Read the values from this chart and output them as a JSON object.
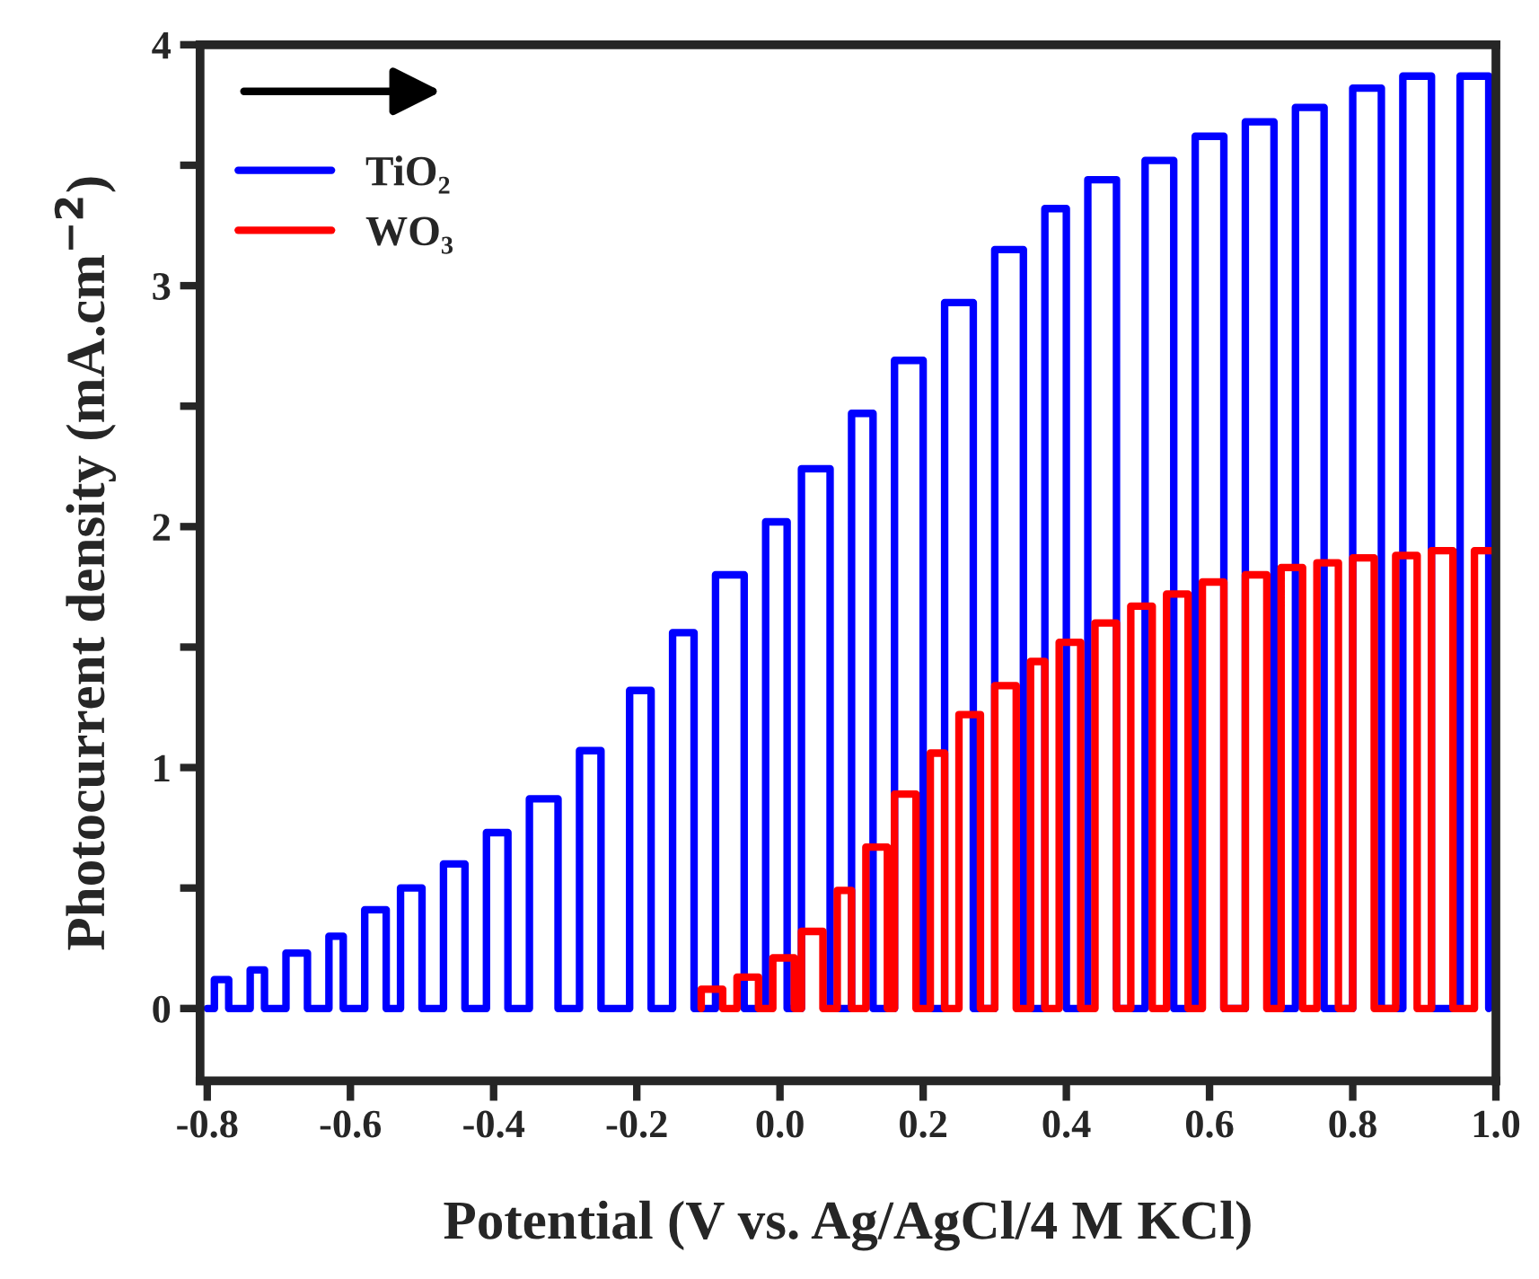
{
  "chart_data": {
    "type": "line",
    "xlabel": "Potential (V vs. Ag/AgCl/4 M KCl)",
    "ylabel": "Photocurrent density (mA.cm$^{−2}$)",
    "xlim": [
      -0.81,
      1.0
    ],
    "ylim": [
      -0.3,
      4.0
    ],
    "xticks": [
      {
        "value": -0.8,
        "label": "-0.8"
      },
      {
        "value": -0.6,
        "label": "-0.6"
      },
      {
        "value": -0.4,
        "label": "-0.4"
      },
      {
        "value": -0.2,
        "label": "-0.2"
      },
      {
        "value": 0.0,
        "label": "0.0"
      },
      {
        "value": 0.2,
        "label": "0.2"
      },
      {
        "value": 0.4,
        "label": "0.4"
      },
      {
        "value": 0.6,
        "label": "0.6"
      },
      {
        "value": 0.8,
        "label": "0.8"
      },
      {
        "value": 1.0,
        "label": "1.0"
      }
    ],
    "yticks": [
      0,
      {
        "value": 0.5,
        "label": null
      },
      1,
      {
        "value": 1.5,
        "label": null
      },
      2,
      {
        "value": 2.5,
        "label": null
      },
      3,
      {
        "value": 3.5,
        "label": null
      },
      4
    ],
    "grid": false,
    "legend": "top left",
    "marker": "none",
    "line_style": "solid",
    "series": [
      {
        "name": "TiO₂",
        "color": "#0000ff",
        "x": [
          -0.8,
          -0.79,
          -0.79,
          -0.77,
          -0.77,
          -0.74,
          -0.74,
          -0.72,
          -0.72,
          -0.69,
          -0.69,
          -0.66,
          -0.66,
          -0.63,
          -0.63,
          -0.61,
          -0.61,
          -0.58,
          -0.58,
          -0.55,
          -0.55,
          -0.53,
          -0.53,
          -0.5,
          -0.5,
          -0.47,
          -0.47,
          -0.44,
          -0.44,
          -0.41,
          -0.41,
          -0.38,
          -0.38,
          -0.35,
          -0.35,
          -0.31,
          -0.31,
          -0.28,
          -0.28,
          -0.25,
          -0.25,
          -0.21,
          -0.21,
          -0.18,
          -0.18,
          -0.15,
          -0.15,
          -0.12,
          -0.12,
          -0.09,
          -0.09,
          -0.05,
          -0.05,
          -0.02,
          -0.02,
          0.01,
          0.01,
          0.03,
          0.03,
          0.07,
          0.07,
          0.1,
          0.1,
          0.13,
          0.13,
          0.16,
          0.16,
          0.2,
          0.2,
          0.23,
          0.23,
          0.27,
          0.27,
          0.3,
          0.3,
          0.34,
          0.34,
          0.37,
          0.37,
          0.4,
          0.4,
          0.43,
          0.43,
          0.47,
          0.47,
          0.51,
          0.51,
          0.55,
          0.55,
          0.58,
          0.58,
          0.62,
          0.62,
          0.65,
          0.65,
          0.69,
          0.69,
          0.72,
          0.72,
          0.76,
          0.76,
          0.8,
          0.8,
          0.84,
          0.84,
          0.87,
          0.87,
          0.91,
          0.91,
          0.95,
          0.95,
          0.99,
          0.99
        ],
        "values": [
          0,
          0,
          0.12,
          0.12,
          0,
          0,
          0.16,
          0.16,
          0,
          0,
          0.23,
          0.23,
          0,
          0,
          0.3,
          0.3,
          0,
          0,
          0.41,
          0.41,
          0,
          0,
          0.5,
          0.5,
          0,
          0,
          0.6,
          0.6,
          0,
          0,
          0.73,
          0.73,
          0,
          0,
          0.87,
          0.87,
          0,
          0,
          1.07,
          1.07,
          0,
          0,
          1.32,
          1.32,
          0,
          0,
          1.56,
          1.56,
          0,
          0,
          1.8,
          1.8,
          0,
          0,
          2.02,
          2.02,
          0,
          0,
          2.24,
          2.24,
          0,
          0,
          2.47,
          2.47,
          0,
          0,
          2.69,
          2.69,
          0,
          0,
          2.93,
          2.93,
          0,
          0,
          3.15,
          3.15,
          0,
          0,
          3.32,
          3.32,
          0,
          0,
          3.44,
          3.44,
          0,
          0,
          3.52,
          3.52,
          0,
          0,
          3.62,
          3.62,
          0,
          0,
          3.68,
          3.68,
          0,
          0,
          3.74,
          3.74,
          0,
          0,
          3.82,
          3.82,
          0,
          0,
          3.87,
          3.87,
          0,
          0,
          3.87,
          3.87,
          0
        ]
      },
      {
        "name": "WO₃",
        "color": "#ff0000",
        "x": [
          -0.11,
          -0.11,
          -0.08,
          -0.08,
          -0.06,
          -0.06,
          -0.03,
          -0.03,
          -0.01,
          -0.01,
          0.02,
          0.02,
          0.03,
          0.03,
          0.06,
          0.06,
          0.08,
          0.08,
          0.1,
          0.1,
          0.12,
          0.12,
          0.15,
          0.15,
          0.16,
          0.16,
          0.19,
          0.19,
          0.21,
          0.21,
          0.23,
          0.23,
          0.25,
          0.25,
          0.28,
          0.28,
          0.3,
          0.3,
          0.33,
          0.33,
          0.35,
          0.35,
          0.37,
          0.37,
          0.39,
          0.39,
          0.42,
          0.42,
          0.44,
          0.44,
          0.47,
          0.47,
          0.49,
          0.49,
          0.52,
          0.52,
          0.54,
          0.54,
          0.57,
          0.57,
          0.59,
          0.59,
          0.62,
          0.62,
          0.65,
          0.65,
          0.68,
          0.68,
          0.7,
          0.7,
          0.73,
          0.73,
          0.75,
          0.75,
          0.78,
          0.78,
          0.8,
          0.8,
          0.83,
          0.83,
          0.86,
          0.86,
          0.89,
          0.89,
          0.91,
          0.91,
          0.94,
          0.94,
          0.97,
          0.97,
          1.0
        ],
        "values": [
          0,
          0.08,
          0.08,
          0,
          0,
          0.13,
          0.13,
          0,
          0,
          0.21,
          0.21,
          0,
          0,
          0.32,
          0.32,
          0,
          0,
          0.49,
          0.49,
          0,
          0,
          0.67,
          0.67,
          0,
          0,
          0.89,
          0.89,
          0,
          0,
          1.06,
          1.06,
          0,
          0,
          1.22,
          1.22,
          0,
          0,
          1.34,
          1.34,
          0,
          0,
          1.44,
          1.44,
          0,
          0,
          1.52,
          1.52,
          0,
          0,
          1.6,
          1.6,
          0,
          0,
          1.67,
          1.67,
          0,
          0,
          1.72,
          1.72,
          0,
          0,
          1.77,
          1.77,
          0,
          0,
          1.8,
          1.8,
          0,
          0,
          1.83,
          1.83,
          0,
          0,
          1.85,
          1.85,
          0,
          0,
          1.87,
          1.87,
          0,
          0,
          1.88,
          1.88,
          0,
          0,
          1.9,
          1.9,
          0,
          0,
          1.9,
          1.9
        ]
      }
    ]
  }
}
